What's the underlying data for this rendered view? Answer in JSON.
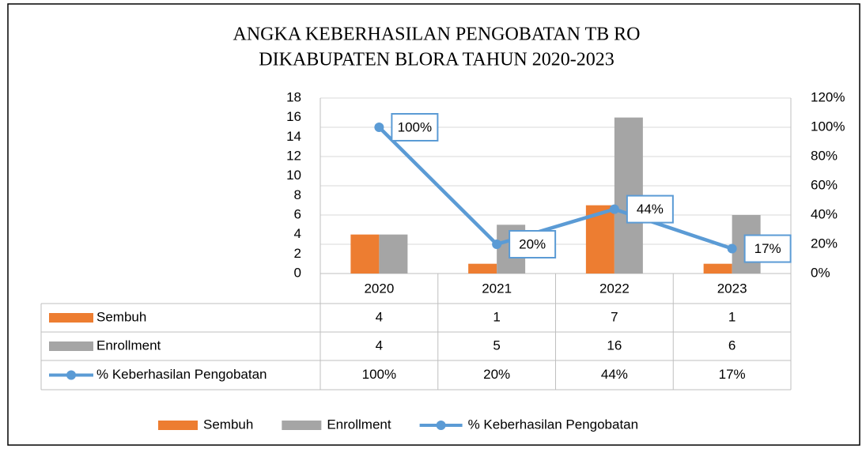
{
  "chart_data": {
    "type": "bar",
    "title": [
      "ANGKA KEBERHASILAN PENGOBATAN TB RO",
      "DIKABUPATEN BLORA TAHUN 2020-2023"
    ],
    "categories": [
      "2020",
      "2021",
      "2022",
      "2023"
    ],
    "series": [
      {
        "name": "Sembuh",
        "color": "#ed7d31",
        "values": [
          4,
          1,
          7,
          1
        ]
      },
      {
        "name": "Enrollment",
        "color": "#a5a5a5",
        "values": [
          4,
          5,
          16,
          6
        ]
      },
      {
        "name": "% Keberhasilan Pengobatan",
        "color": "#5b9bd5",
        "type": "line",
        "axis": "y2",
        "values": [
          100,
          20,
          44,
          17
        ],
        "value_labels": [
          "100%",
          "20%",
          "44%",
          "17%"
        ]
      }
    ],
    "ylim": [
      0,
      18
    ],
    "yticks": [
      0,
      2,
      4,
      6,
      8,
      10,
      12,
      14,
      16,
      18
    ],
    "y2lim": [
      0,
      120
    ],
    "y2ticks": [
      {
        "value": 0,
        "label": "0%"
      },
      {
        "value": 20,
        "label": "20%"
      },
      {
        "value": 40,
        "label": "40%"
      },
      {
        "value": 60,
        "label": "60%"
      },
      {
        "value": 80,
        "label": "80%"
      },
      {
        "value": 100,
        "label": "100%"
      },
      {
        "value": 120,
        "label": "120%"
      }
    ],
    "grid": true,
    "legend": "bottom"
  }
}
